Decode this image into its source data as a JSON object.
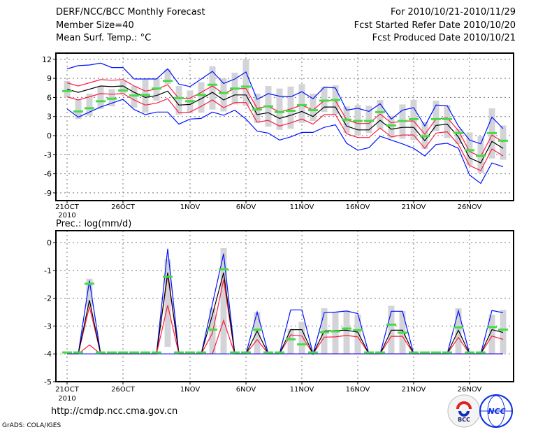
{
  "header": {
    "title": "DERF/NCC/BCC Monthly Forecast",
    "member_size": "Member Size=40",
    "variable": "Mean Surf. Temp.: °C",
    "period": "For 2010/10/21-2010/11/29",
    "start_date": "Fcst Started Refer Date 2010/10/20",
    "produced_date": "Fcst Produced Date 2010/10/21"
  },
  "footer": {
    "url": "http://cmdp.ncc.cma.gov.cn",
    "grads": "GrADS: COLA/IGES",
    "logo_bcc": "BCC",
    "logo_ncc": "NCC"
  },
  "colors": {
    "mean": "#000000",
    "spread": "#ff1a40",
    "extreme": "#0010ff",
    "marker": "#44dd44",
    "box": "#d3d4d8",
    "grid": "#777777"
  },
  "chart_data": [
    {
      "type": "line",
      "title": "Mean Surf. Temp.: °C",
      "x_start": "2010-10-21",
      "days": 40,
      "xticks": [
        {
          "day": 0,
          "label": "21OCT"
        },
        {
          "day": 5,
          "label": "26OCT"
        },
        {
          "day": 11,
          "label": "1NOV"
        },
        {
          "day": 16,
          "label": "6NOV"
        },
        {
          "day": 21,
          "label": "11NOV"
        },
        {
          "day": 26,
          "label": "16NOV"
        },
        {
          "day": 31,
          "label": "21NOV"
        },
        {
          "day": 36,
          "label": "26NOV"
        }
      ],
      "year_label": "2010",
      "yticks": [
        12,
        9,
        6,
        3,
        0,
        -3,
        -6,
        -9
      ],
      "ylim": [
        -10,
        13
      ],
      "grid": true,
      "series": [
        {
          "name": "max",
          "color_key": "extreme",
          "values": [
            10.5,
            11.0,
            11.1,
            11.4,
            10.7,
            10.7,
            8.9,
            8.9,
            8.9,
            10.5,
            8.1,
            7.7,
            8.9,
            10.1,
            8.2,
            8.9,
            10.0,
            5.7,
            6.6,
            6.2,
            6.1,
            6.9,
            5.8,
            7.6,
            7.5,
            4.0,
            4.3,
            3.8,
            5.0,
            2.6,
            4.0,
            4.4,
            1.5,
            4.8,
            4.7,
            1.5,
            -0.7,
            -1.3,
            2.9,
            1.1
          ]
        },
        {
          "name": "upper",
          "color_key": "spread",
          "values": [
            8.3,
            7.8,
            8.3,
            8.8,
            8.7,
            8.8,
            7.8,
            7.0,
            7.3,
            8.0,
            5.8,
            5.9,
            6.8,
            7.8,
            6.6,
            7.4,
            7.4,
            4.3,
            4.6,
            3.7,
            4.2,
            4.8,
            4.0,
            5.5,
            5.5,
            2.5,
            1.9,
            1.9,
            3.4,
            2.0,
            2.3,
            2.3,
            0.2,
            2.6,
            2.8,
            0.8,
            -2.5,
            -3.3,
            0.1,
            -1.0
          ]
        },
        {
          "name": "mean",
          "color_key": "mean",
          "values": [
            7.3,
            6.8,
            7.3,
            7.8,
            7.7,
            7.8,
            6.8,
            6.0,
            6.3,
            7.0,
            4.8,
            4.9,
            5.8,
            6.8,
            5.6,
            6.4,
            6.4,
            3.3,
            3.6,
            2.7,
            3.2,
            3.8,
            3.0,
            4.5,
            4.5,
            1.5,
            0.9,
            0.9,
            2.4,
            1.0,
            1.3,
            1.3,
            -0.8,
            1.6,
            1.8,
            -0.2,
            -3.5,
            -4.3,
            -0.9,
            -2.0
          ]
        },
        {
          "name": "lower",
          "color_key": "spread",
          "values": [
            6.1,
            5.6,
            6.1,
            6.6,
            6.5,
            6.6,
            5.6,
            4.8,
            5.1,
            5.8,
            3.6,
            3.7,
            4.6,
            5.6,
            4.4,
            5.2,
            5.2,
            2.1,
            2.4,
            1.5,
            2.0,
            2.6,
            1.8,
            3.3,
            3.3,
            0.3,
            -0.3,
            -0.3,
            1.2,
            -0.2,
            0.1,
            0.1,
            -2.0,
            0.4,
            0.6,
            -1.4,
            -4.7,
            -5.5,
            -2.1,
            -3.2
          ]
        },
        {
          "name": "min",
          "color_key": "extreme",
          "values": [
            4.2,
            2.9,
            3.7,
            4.5,
            5.1,
            5.7,
            4.1,
            3.3,
            3.7,
            3.7,
            1.8,
            2.6,
            2.7,
            3.7,
            3.2,
            4.0,
            2.6,
            0.7,
            0.4,
            -0.7,
            -0.2,
            0.5,
            0.5,
            1.3,
            1.7,
            -1.2,
            -2.3,
            -1.9,
            -0.1,
            -0.7,
            -1.3,
            -2.0,
            -3.2,
            -1.4,
            -1.2,
            -2.0,
            -6.2,
            -7.5,
            -4.3,
            -4.9
          ]
        }
      ],
      "markers": [
        7.0,
        3.8,
        4.3,
        5.4,
        5.8,
        7.1,
        6.3,
        6.4,
        7.4,
        8.6,
        5.9,
        5.4,
        6.4,
        8.0,
        6.7,
        7.4,
        7.7,
        4.1,
        4.6,
        3.7,
        3.9,
        4.8,
        4.0,
        5.5,
        5.6,
        2.5,
        2.3,
        2.3,
        3.7,
        1.6,
        2.3,
        2.6,
        -0.1,
        2.6,
        2.6,
        0.4,
        -2.3,
        -3.2,
        0.4,
        -0.8
      ],
      "boxes": [
        [
          6.0,
          8.6
        ],
        [
          2.6,
          5.7
        ],
        [
          3.1,
          6.6
        ],
        [
          4.2,
          7.7
        ],
        [
          4.6,
          7.3
        ],
        [
          6.6,
          8.6
        ],
        [
          4.4,
          7.8
        ],
        [
          3.6,
          8.8
        ],
        [
          5.5,
          9.0
        ],
        [
          8.1,
          10.4
        ],
        [
          3.3,
          7.8
        ],
        [
          3.5,
          7.1
        ],
        [
          3.6,
          8.4
        ],
        [
          4.1,
          10.9
        ],
        [
          3.8,
          9.0
        ],
        [
          4.9,
          9.9
        ],
        [
          4.7,
          12.0
        ],
        [
          2.0,
          6.6
        ],
        [
          1.4,
          7.8
        ],
        [
          0.9,
          7.4
        ],
        [
          1.1,
          7.7
        ],
        [
          2.0,
          8.1
        ],
        [
          2.3,
          6.6
        ],
        [
          3.7,
          7.7
        ],
        [
          3.3,
          7.9
        ],
        [
          0.4,
          4.6
        ],
        [
          0.0,
          4.8
        ],
        [
          0.4,
          4.7
        ],
        [
          1.1,
          5.6
        ],
        [
          -0.4,
          3.1
        ],
        [
          -0.5,
          4.9
        ],
        [
          -0.7,
          5.6
        ],
        [
          -2.1,
          2.1
        ],
        [
          0.7,
          5.5
        ],
        [
          -0.4,
          4.8
        ],
        [
          -1.3,
          1.0
        ],
        [
          -4.7,
          0.5
        ],
        [
          -5.9,
          -0.1
        ],
        [
          -3.6,
          4.3
        ],
        [
          -3.8,
          1.6
        ]
      ]
    },
    {
      "type": "line",
      "title": "Prec.: log(mm/d)",
      "x_start": "2010-10-21",
      "days": 40,
      "xticks": [
        {
          "day": 0,
          "label": "21OCT"
        },
        {
          "day": 5,
          "label": "26OCT"
        },
        {
          "day": 11,
          "label": "1NOV"
        },
        {
          "day": 16,
          "label": "6NOV"
        },
        {
          "day": 21,
          "label": "11NOV"
        },
        {
          "day": 26,
          "label": "16NOV"
        },
        {
          "day": 31,
          "label": "21NOV"
        },
        {
          "day": 36,
          "label": "26NOV"
        }
      ],
      "year_label": "2010",
      "yticks": [
        0,
        -1,
        -2,
        -3,
        -4,
        -5
      ],
      "ylim": [
        -5,
        0.5
      ],
      "grid": true,
      "series": [
        {
          "name": "max",
          "color_key": "extreme",
          "values": [
            -4,
            -4,
            -1.37,
            -4,
            -4,
            -4,
            -4,
            -4,
            -4,
            -0.22,
            -4,
            -4,
            -4,
            -2.2,
            -0.4,
            -4,
            -4,
            -2.5,
            -4,
            -4,
            -2.42,
            -2.42,
            -4,
            -2.52,
            -2.5,
            -2.46,
            -2.55,
            -4,
            -4,
            -2.47,
            -2.47,
            -4,
            -4,
            -4,
            -4,
            -2.45,
            -4,
            -4,
            -2.44,
            -2.52
          ]
        },
        {
          "name": "upper",
          "color_key": "spread",
          "values": [
            -4,
            -4,
            -2.3,
            -4,
            -4,
            -4,
            -4,
            -4,
            -4,
            -1.16,
            -4,
            -4,
            -4,
            -3.26,
            -1.33,
            -4,
            -4,
            -3.49,
            -4,
            -4,
            -3.32,
            -3.36,
            -4,
            -3.4,
            -3.39,
            -3.34,
            -3.39,
            -4,
            -4,
            -3.37,
            -3.37,
            -4,
            -4,
            -4,
            -4,
            -3.41,
            -4,
            -4,
            -3.36,
            -3.48
          ]
        },
        {
          "name": "mean",
          "color_key": "mean",
          "values": [
            -4,
            -4,
            -2.07,
            -4,
            -4,
            -4,
            -4,
            -4,
            -4,
            -1.08,
            -4,
            -4,
            -4,
            -2.6,
            -1.08,
            -4,
            -4,
            -3.18,
            -4,
            -4,
            -3.13,
            -3.13,
            -4,
            -3.18,
            -3.16,
            -3.15,
            -3.22,
            -4,
            -4,
            -3.15,
            -3.15,
            -4,
            -4,
            -4,
            -4,
            -3.15,
            -4,
            -4,
            -3.13,
            -3.23
          ]
        },
        {
          "name": "lower",
          "color_key": "spread",
          "values": [
            -4,
            -4,
            -3.68,
            -4,
            -4,
            -4,
            -4,
            -4,
            -4,
            -2.25,
            -4,
            -4,
            -4,
            -4,
            -2.8,
            -4,
            -4,
            -4,
            -4,
            -4,
            -4,
            -4,
            -4,
            -4,
            -4,
            -4,
            -4,
            -4,
            -4,
            -4,
            -4,
            -4,
            -4,
            -4,
            -4,
            -4,
            -4,
            -4,
            -4,
            -4
          ]
        },
        {
          "name": "min",
          "color_key": "extreme",
          "values": [
            -4,
            -4,
            -4,
            -4,
            -4,
            -4,
            -4,
            -4,
            -4,
            -4,
            -4,
            -4,
            -4,
            -4,
            -4,
            -4,
            -4,
            -4,
            -4,
            -4,
            -4,
            -4,
            -4,
            -4,
            -4,
            -4,
            -4,
            -4,
            -4,
            -4,
            -4,
            -4,
            -4,
            -4,
            -4,
            -4,
            -4,
            -4,
            -4,
            -4
          ]
        }
      ],
      "markers": [
        -3.95,
        -3.95,
        -1.48,
        -3.95,
        -3.95,
        -3.95,
        -3.95,
        -3.95,
        -3.95,
        -1.23,
        -3.95,
        -3.95,
        -3.95,
        -3.13,
        -0.96,
        -3.95,
        -3.95,
        -3.13,
        -3.95,
        -3.95,
        -3.48,
        -3.66,
        -3.95,
        -3.22,
        -3.19,
        -3.09,
        -3.15,
        -3.95,
        -3.95,
        -2.95,
        -3.24,
        -3.95,
        -3.95,
        -3.95,
        -3.95,
        -3.05,
        -3.95,
        -3.95,
        -3.04,
        -3.13
      ],
      "boxes": [
        null,
        null,
        [
          -2.3,
          -1.3
        ],
        null,
        null,
        null,
        null,
        null,
        null,
        [
          -3.75,
          -0.6
        ],
        null,
        null,
        null,
        [
          -4,
          -2.35
        ],
        [
          -4,
          -0.2
        ],
        null,
        null,
        [
          -4,
          -2.5
        ],
        null,
        null,
        [
          -4,
          -3.1
        ],
        [
          -4,
          -2.85
        ],
        null,
        [
          -4,
          -2.36
        ],
        [
          -4,
          -2.49
        ],
        [
          -4,
          -2.45
        ],
        [
          -4,
          -2.59
        ],
        null,
        null,
        [
          -4,
          -2.27
        ],
        [
          -4,
          -2.46
        ],
        null,
        null,
        null,
        null,
        [
          -4,
          -2.36
        ],
        null,
        null,
        [
          -4,
          -2.59
        ],
        [
          -4,
          -2.42
        ]
      ]
    }
  ]
}
